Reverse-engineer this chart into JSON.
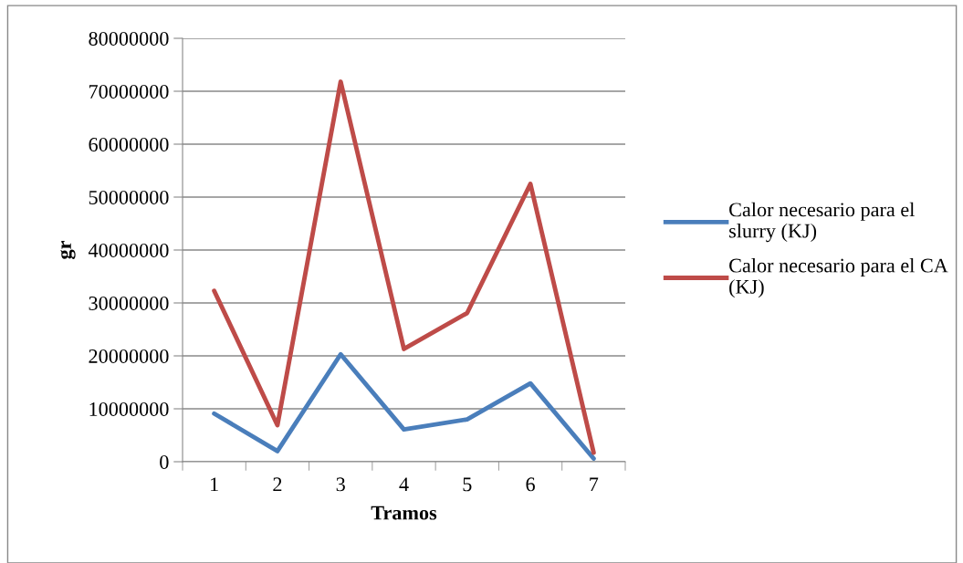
{
  "chart_data": {
    "type": "line",
    "xlabel": "Tramos",
    "ylabel": "gr",
    "categories": [
      "1",
      "2",
      "3",
      "4",
      "5",
      "6",
      "7"
    ],
    "series": [
      {
        "name": "Calor necesario para el slurry (KJ)",
        "color": "#4a7ebb",
        "values": [
          9100000,
          2000000,
          20300000,
          6100000,
          8000000,
          14800000,
          600000
        ]
      },
      {
        "name": "Calor necesario para el CA (KJ)",
        "color": "#be4b48",
        "values": [
          32300000,
          6900000,
          71800000,
          21300000,
          28100000,
          52500000,
          1700000
        ]
      }
    ],
    "ylim": [
      0,
      80000000
    ],
    "yticks": [
      0,
      10000000,
      20000000,
      30000000,
      40000000,
      50000000,
      60000000,
      70000000,
      80000000
    ],
    "grid": "y",
    "legend": "right",
    "marker": "none",
    "line_style": "solid"
  }
}
